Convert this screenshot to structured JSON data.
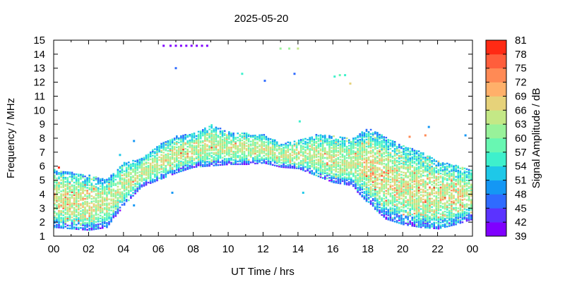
{
  "chart_data": {
    "type": "heatmap",
    "title": "2025-05-20",
    "xlabel": "UT Time / hrs",
    "ylabel": "Frequency / MHz",
    "xlim": [
      0,
      24
    ],
    "ylim": [
      1,
      15
    ],
    "x_ticks": [
      "00",
      "02",
      "04",
      "06",
      "08",
      "10",
      "12",
      "14",
      "16",
      "18",
      "20",
      "22",
      "00"
    ],
    "y_ticks": [
      "1",
      "2",
      "3",
      "4",
      "5",
      "6",
      "7",
      "8",
      "9",
      "10",
      "11",
      "12",
      "13",
      "14",
      "15"
    ],
    "colorbar": {
      "label": "Signal Amplitude / dB",
      "min": 39,
      "max": 81,
      "ticks": [
        "39",
        "42",
        "45",
        "48",
        "51",
        "54",
        "57",
        "60",
        "63",
        "66",
        "69",
        "72",
        "75",
        "78",
        "81"
      ],
      "colors": [
        "#7f00ff",
        "#5b33ff",
        "#2f6bff",
        "#1497f4",
        "#1ec8e8",
        "#3ef0cc",
        "#68f7b2",
        "#98f29a",
        "#c4e886",
        "#e6d27a",
        "#ffb06a",
        "#ff8a55",
        "#ff5e3c",
        "#ff2a14"
      ]
    },
    "band_profile": {
      "hours": [
        0,
        1,
        2,
        3,
        4,
        5,
        6,
        7,
        8,
        9,
        10,
        11,
        12,
        13,
        14,
        15,
        16,
        17,
        18,
        19,
        20,
        21,
        22,
        23,
        24
      ],
      "lower_mhz": [
        1.6,
        1.5,
        1.4,
        1.6,
        3.2,
        4.5,
        5.0,
        5.5,
        5.9,
        6.0,
        6.1,
        6.1,
        6.2,
        5.9,
        5.8,
        5.3,
        4.8,
        4.6,
        3.3,
        2.2,
        1.8,
        1.6,
        1.5,
        1.8,
        2.2
      ],
      "upper_mhz": [
        5.7,
        5.5,
        5.3,
        5.0,
        6.2,
        6.5,
        7.5,
        8.1,
        8.3,
        8.9,
        8.4,
        8.3,
        8.2,
        7.6,
        7.8,
        8.2,
        8.1,
        7.9,
        8.7,
        8.0,
        7.4,
        7.0,
        6.3,
        6.0,
        5.7
      ]
    },
    "isolated_points": [
      {
        "hour": 6.3,
        "mhz": 14.6,
        "db": 39
      },
      {
        "hour": 6.7,
        "mhz": 14.6,
        "db": 40
      },
      {
        "hour": 7.0,
        "mhz": 14.6,
        "db": 40
      },
      {
        "hour": 7.3,
        "mhz": 14.6,
        "db": 41
      },
      {
        "hour": 7.6,
        "mhz": 14.6,
        "db": 41
      },
      {
        "hour": 7.9,
        "mhz": 14.6,
        "db": 40
      },
      {
        "hour": 8.2,
        "mhz": 14.6,
        "db": 41
      },
      {
        "hour": 8.5,
        "mhz": 14.6,
        "db": 40
      },
      {
        "hour": 8.8,
        "mhz": 14.6,
        "db": 41
      },
      {
        "hour": 7.0,
        "mhz": 13.0,
        "db": 46
      },
      {
        "hour": 10.8,
        "mhz": 12.6,
        "db": 55
      },
      {
        "hour": 12.1,
        "mhz": 12.1,
        "db": 47
      },
      {
        "hour": 13.8,
        "mhz": 12.6,
        "db": 47
      },
      {
        "hour": 13.0,
        "mhz": 14.4,
        "db": 60
      },
      {
        "hour": 13.5,
        "mhz": 14.4,
        "db": 62
      },
      {
        "hour": 14.0,
        "mhz": 14.4,
        "db": 63
      },
      {
        "hour": 16.1,
        "mhz": 12.4,
        "db": 55
      },
      {
        "hour": 16.4,
        "mhz": 12.5,
        "db": 58
      },
      {
        "hour": 16.7,
        "mhz": 12.5,
        "db": 55
      },
      {
        "hour": 17.0,
        "mhz": 11.9,
        "db": 66
      },
      {
        "hour": 14.1,
        "mhz": 9.2,
        "db": 54
      },
      {
        "hour": 21.5,
        "mhz": 8.8,
        "db": 48
      },
      {
        "hour": 23.6,
        "mhz": 8.2,
        "db": 48
      },
      {
        "hour": 21.3,
        "mhz": 8.2,
        "db": 72
      },
      {
        "hour": 20.4,
        "mhz": 8.1,
        "db": 74
      },
      {
        "hour": 4.6,
        "mhz": 7.8,
        "db": 50
      },
      {
        "hour": 3.8,
        "mhz": 6.8,
        "db": 51
      },
      {
        "hour": 0.3,
        "mhz": 5.9,
        "db": 78
      },
      {
        "hour": 6.8,
        "mhz": 4.1,
        "db": 50
      },
      {
        "hour": 14.3,
        "mhz": 4.1,
        "db": 52
      },
      {
        "hour": 4.6,
        "mhz": 3.2,
        "db": 48
      }
    ]
  }
}
